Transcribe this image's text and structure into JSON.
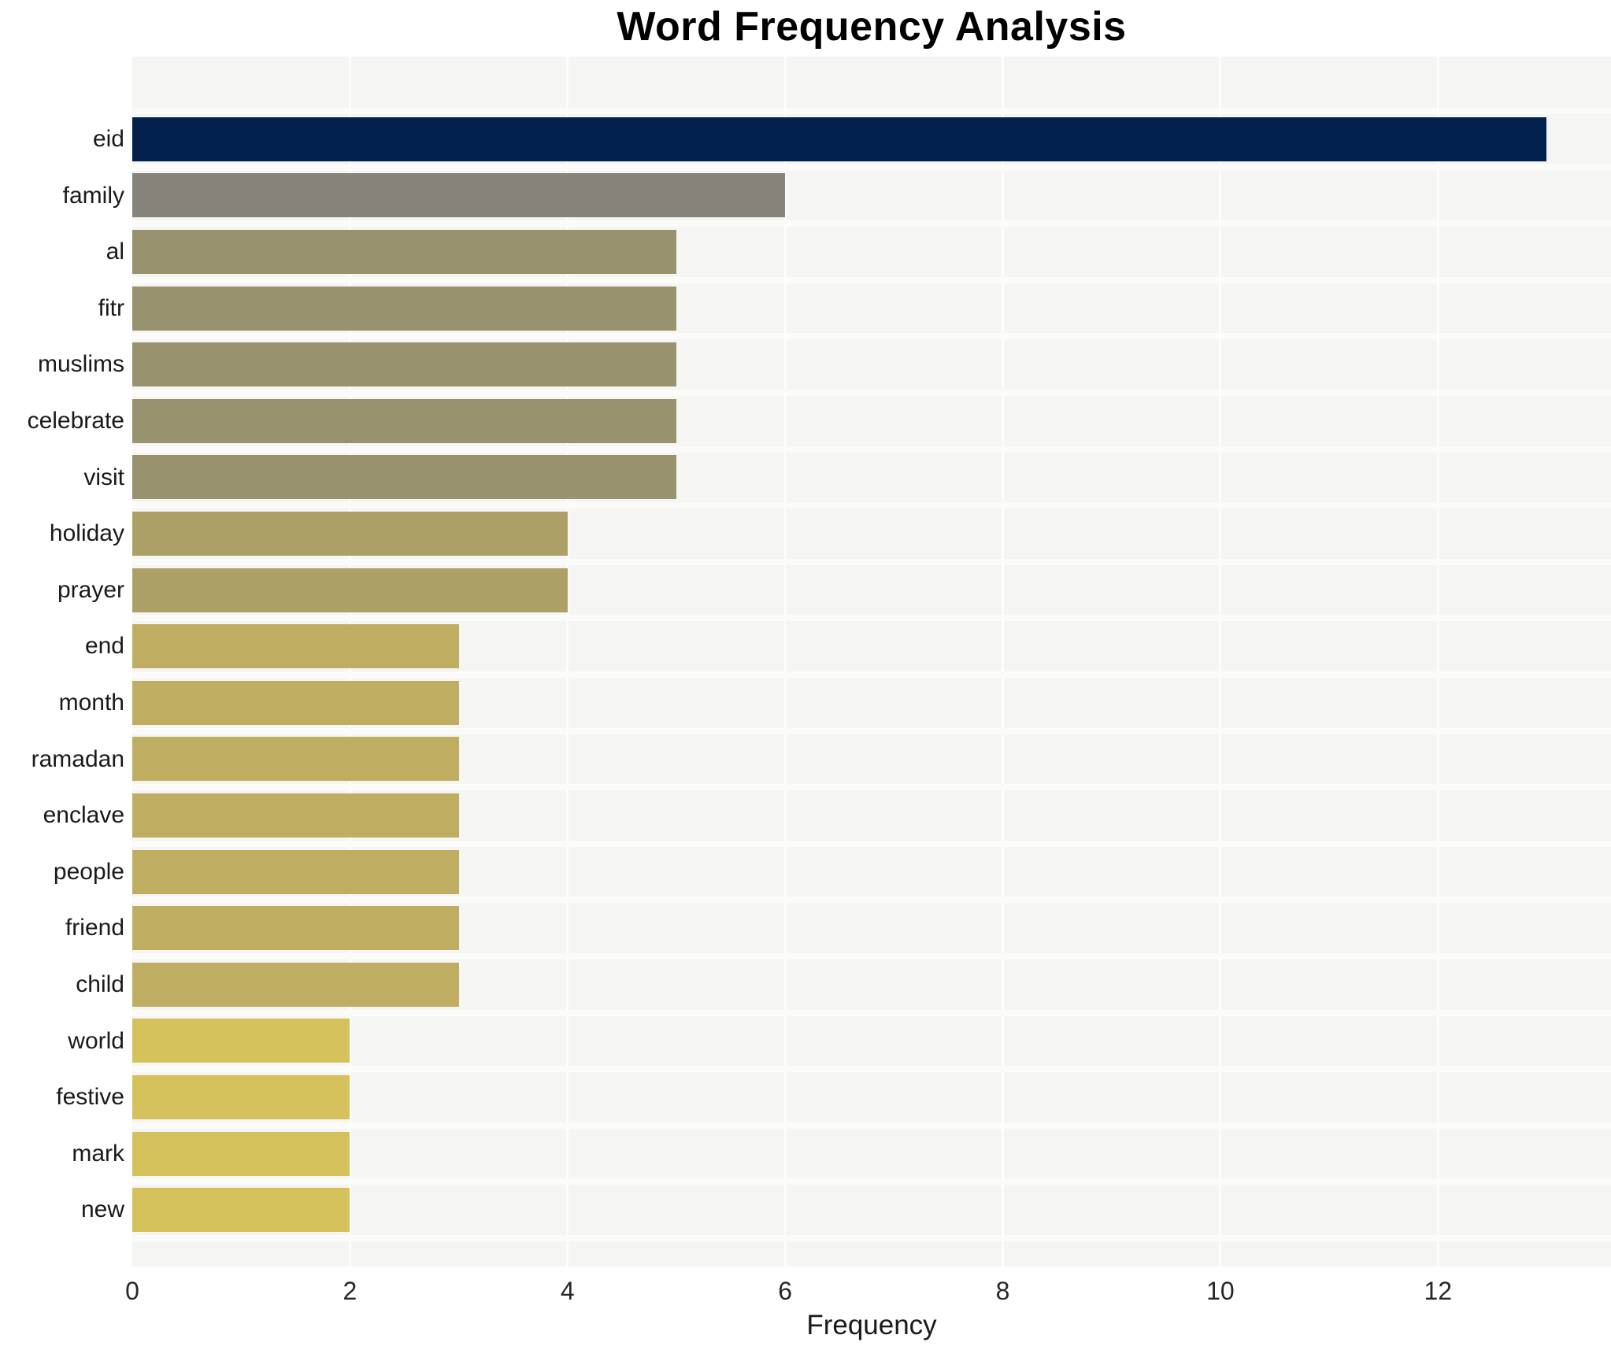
{
  "chart_data": {
    "type": "bar",
    "orientation": "horizontal",
    "title": "Word Frequency Analysis",
    "xlabel": "Frequency",
    "ylabel": "",
    "categories": [
      "eid",
      "family",
      "al",
      "fitr",
      "muslims",
      "celebrate",
      "visit",
      "holiday",
      "prayer",
      "end",
      "month",
      "ramadan",
      "enclave",
      "people",
      "friend",
      "child",
      "world",
      "festive",
      "mark",
      "new"
    ],
    "values": [
      13,
      6,
      5,
      5,
      5,
      5,
      5,
      4,
      4,
      3,
      3,
      3,
      3,
      3,
      3,
      3,
      2,
      2,
      2,
      2
    ],
    "xlim": [
      0,
      13.59
    ],
    "xticks": [
      0,
      2,
      4,
      6,
      8,
      10,
      12
    ],
    "grid": true,
    "legend": false,
    "colors_by_value": {
      "13": "#02224d",
      "6": "#85837a",
      "5": "#99926e",
      "4": "#aca067",
      "3": "#bfae62",
      "2": "#d5c25d"
    },
    "plot_background": "#f5f5f3",
    "grid_color": "#fdfdfc",
    "title_color": "#000000",
    "tick_color": "#262626"
  }
}
